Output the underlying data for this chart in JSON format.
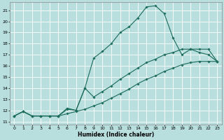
{
  "xlabel": "Humidex (Indice chaleur)",
  "xlim": [
    -0.5,
    23.5
  ],
  "ylim": [
    10.7,
    21.7
  ],
  "yticks": [
    11,
    12,
    13,
    14,
    15,
    16,
    17,
    18,
    19,
    20,
    21
  ],
  "xticks": [
    0,
    1,
    2,
    3,
    4,
    5,
    6,
    7,
    8,
    9,
    10,
    11,
    12,
    13,
    14,
    15,
    16,
    17,
    18,
    19,
    20,
    21,
    22,
    23
  ],
  "bg_color": "#b8dede",
  "grid_color": "#d8eeee",
  "line_color": "#1a6b5a",
  "line1_x": [
    0,
    1,
    2,
    3,
    4,
    5,
    6,
    7,
    8,
    9,
    10,
    11,
    12,
    13,
    14,
    15,
    16,
    17,
    18,
    19,
    20,
    21,
    22,
    23
  ],
  "line1_y": [
    11.5,
    11.9,
    11.5,
    11.5,
    11.5,
    11.5,
    12.2,
    12.0,
    14.0,
    16.7,
    17.3,
    18.0,
    19.0,
    19.5,
    20.3,
    21.3,
    21.4,
    20.7,
    18.5,
    17.0,
    17.5,
    17.2,
    17.0,
    16.4
  ],
  "line2_x": [
    0,
    1,
    2,
    3,
    4,
    5,
    6,
    7,
    8,
    9,
    10,
    11,
    12,
    13,
    14,
    15,
    16,
    17,
    18,
    19,
    20,
    21,
    22,
    23
  ],
  "line2_y": [
    11.5,
    11.9,
    11.5,
    11.5,
    11.5,
    11.5,
    12.1,
    12.0,
    14.0,
    13.2,
    13.7,
    14.2,
    14.8,
    15.3,
    15.8,
    16.3,
    16.6,
    17.0,
    17.2,
    17.5,
    17.5,
    17.5,
    17.5,
    16.4
  ],
  "line3_x": [
    0,
    1,
    2,
    3,
    4,
    5,
    6,
    7,
    8,
    9,
    10,
    11,
    12,
    13,
    14,
    15,
    16,
    17,
    18,
    19,
    20,
    21,
    22,
    23
  ],
  "line3_y": [
    11.5,
    11.9,
    11.5,
    11.5,
    11.5,
    11.5,
    11.7,
    11.9,
    12.1,
    12.4,
    12.7,
    13.1,
    13.5,
    13.9,
    14.4,
    14.8,
    15.1,
    15.5,
    15.8,
    16.1,
    16.3,
    16.4,
    16.4,
    16.4
  ]
}
